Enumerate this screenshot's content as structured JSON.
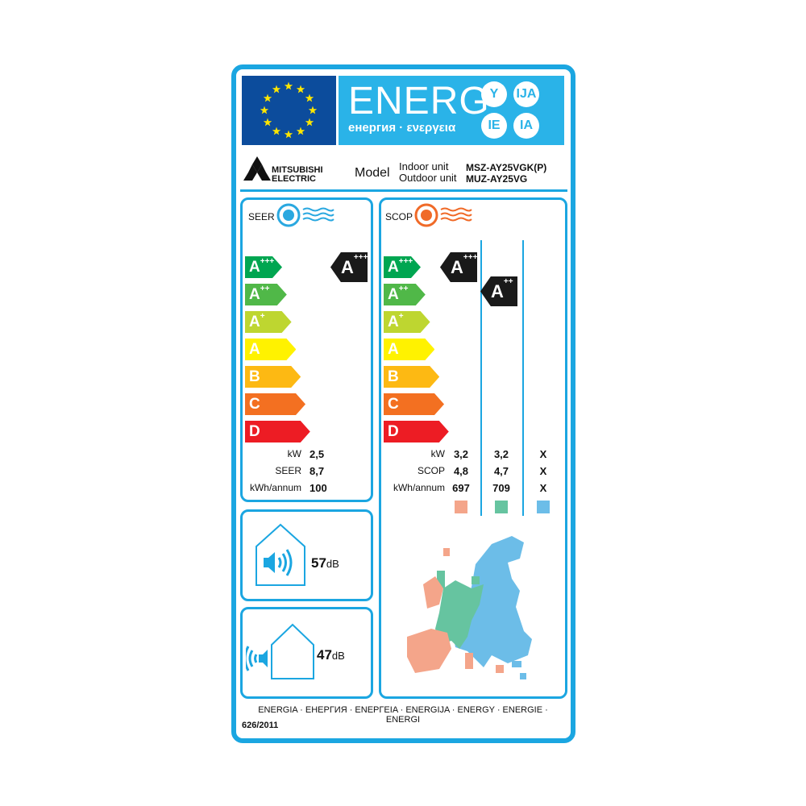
{
  "header": {
    "energy_title": "ENERG",
    "energy_subtitle": "енергия · ενεργεια",
    "suffixes": [
      "Y",
      "IJA",
      "IE",
      "IA"
    ]
  },
  "brand": {
    "line1": "MITSUBISHI",
    "line2": "ELECTRIC"
  },
  "model": {
    "label": "Model",
    "indoor_label": "Indoor unit",
    "outdoor_label": "Outdoor unit",
    "indoor_code": "MSZ-AY25VGK(P)",
    "outdoor_code": "MUZ-AY25VG"
  },
  "scale": [
    {
      "letter": "A",
      "plus": "+++",
      "color": "#00a651"
    },
    {
      "letter": "A",
      "plus": "++",
      "color": "#50b848"
    },
    {
      "letter": "A",
      "plus": "+",
      "color": "#bed630"
    },
    {
      "letter": "A",
      "plus": "",
      "color": "#fff200"
    },
    {
      "letter": "B",
      "plus": "",
      "color": "#fdb913"
    },
    {
      "letter": "C",
      "plus": "",
      "color": "#f37021"
    },
    {
      "letter": "D",
      "plus": "",
      "color": "#ed1c24"
    }
  ],
  "cooling": {
    "title": "SEER",
    "rating": {
      "letter": "A",
      "plus": "+++"
    },
    "rows": [
      {
        "label": "kW",
        "value": "2,5"
      },
      {
        "label": "SEER",
        "value": "8,7"
      },
      {
        "label": "kWh/annum",
        "value": "100"
      }
    ]
  },
  "heating": {
    "title": "SCOP",
    "ratings": [
      {
        "letter": "A",
        "plus": "+++"
      },
      {
        "letter": "A",
        "plus": "++"
      }
    ],
    "row_labels": [
      "kW",
      "SCOP",
      "kWh/annum"
    ],
    "columns": [
      {
        "values": [
          "3,2",
          "4,8",
          "697"
        ],
        "color": "#f4a58a"
      },
      {
        "values": [
          "3,2",
          "4,7",
          "709"
        ],
        "color": "#66c4a0"
      },
      {
        "values": [
          "X",
          "X",
          "X"
        ],
        "color": "#6cbde8"
      }
    ]
  },
  "noise": {
    "indoor": {
      "value": "57",
      "unit": "dB"
    },
    "outdoor": {
      "value": "47",
      "unit": "dB"
    }
  },
  "footer": {
    "languages": "ENERGIA · ЕНЕРГИЯ · ΕΝΕΡΓΕΙΑ · ENERGIJA · ENERGY · ENERGIE · ENERGI",
    "regulation": "626/2011"
  },
  "colors": {
    "border": "#1ba6e1",
    "eu_blue": "#0c4c9c",
    "energy_blue": "#2ab3e8"
  }
}
